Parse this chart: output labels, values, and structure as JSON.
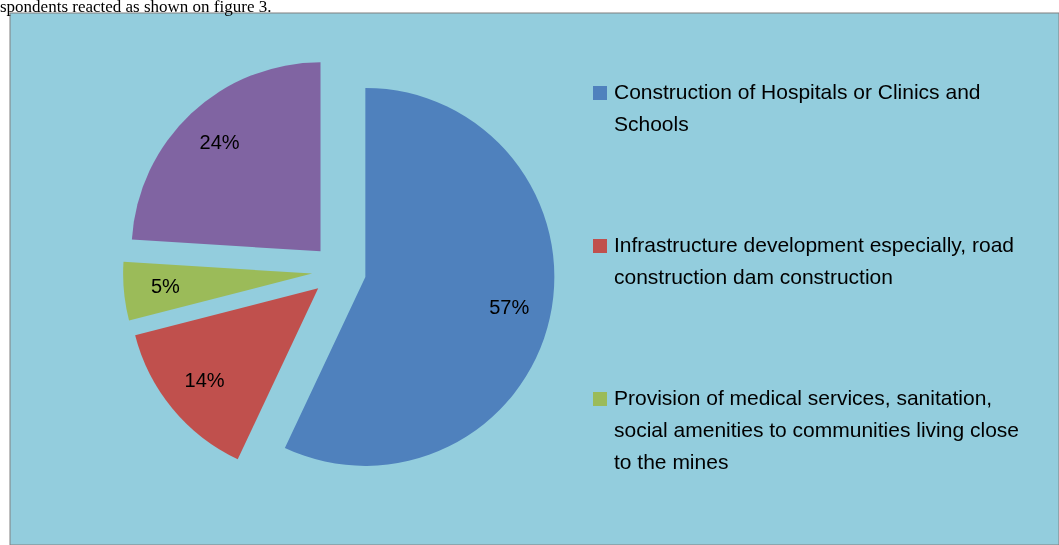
{
  "chart_data": {
    "type": "pie",
    "categories": [
      "Construction of Hospitals or Clinics and Schools",
      "Infrastructure development especially, road construction dam construction",
      "Provision of medical services, sanitation, social amenities to communities living close to the mines",
      null
    ],
    "values": [
      57,
      14,
      5,
      24
    ],
    "colors": [
      "#4f81bd",
      "#c0504d",
      "#9bbb59",
      "#8064a2"
    ],
    "value_labels": [
      "57%",
      "14%",
      "5%",
      "24%"
    ],
    "legend": "right",
    "annotations": [
      "spondents reacted as shown on figure 3."
    ]
  }
}
